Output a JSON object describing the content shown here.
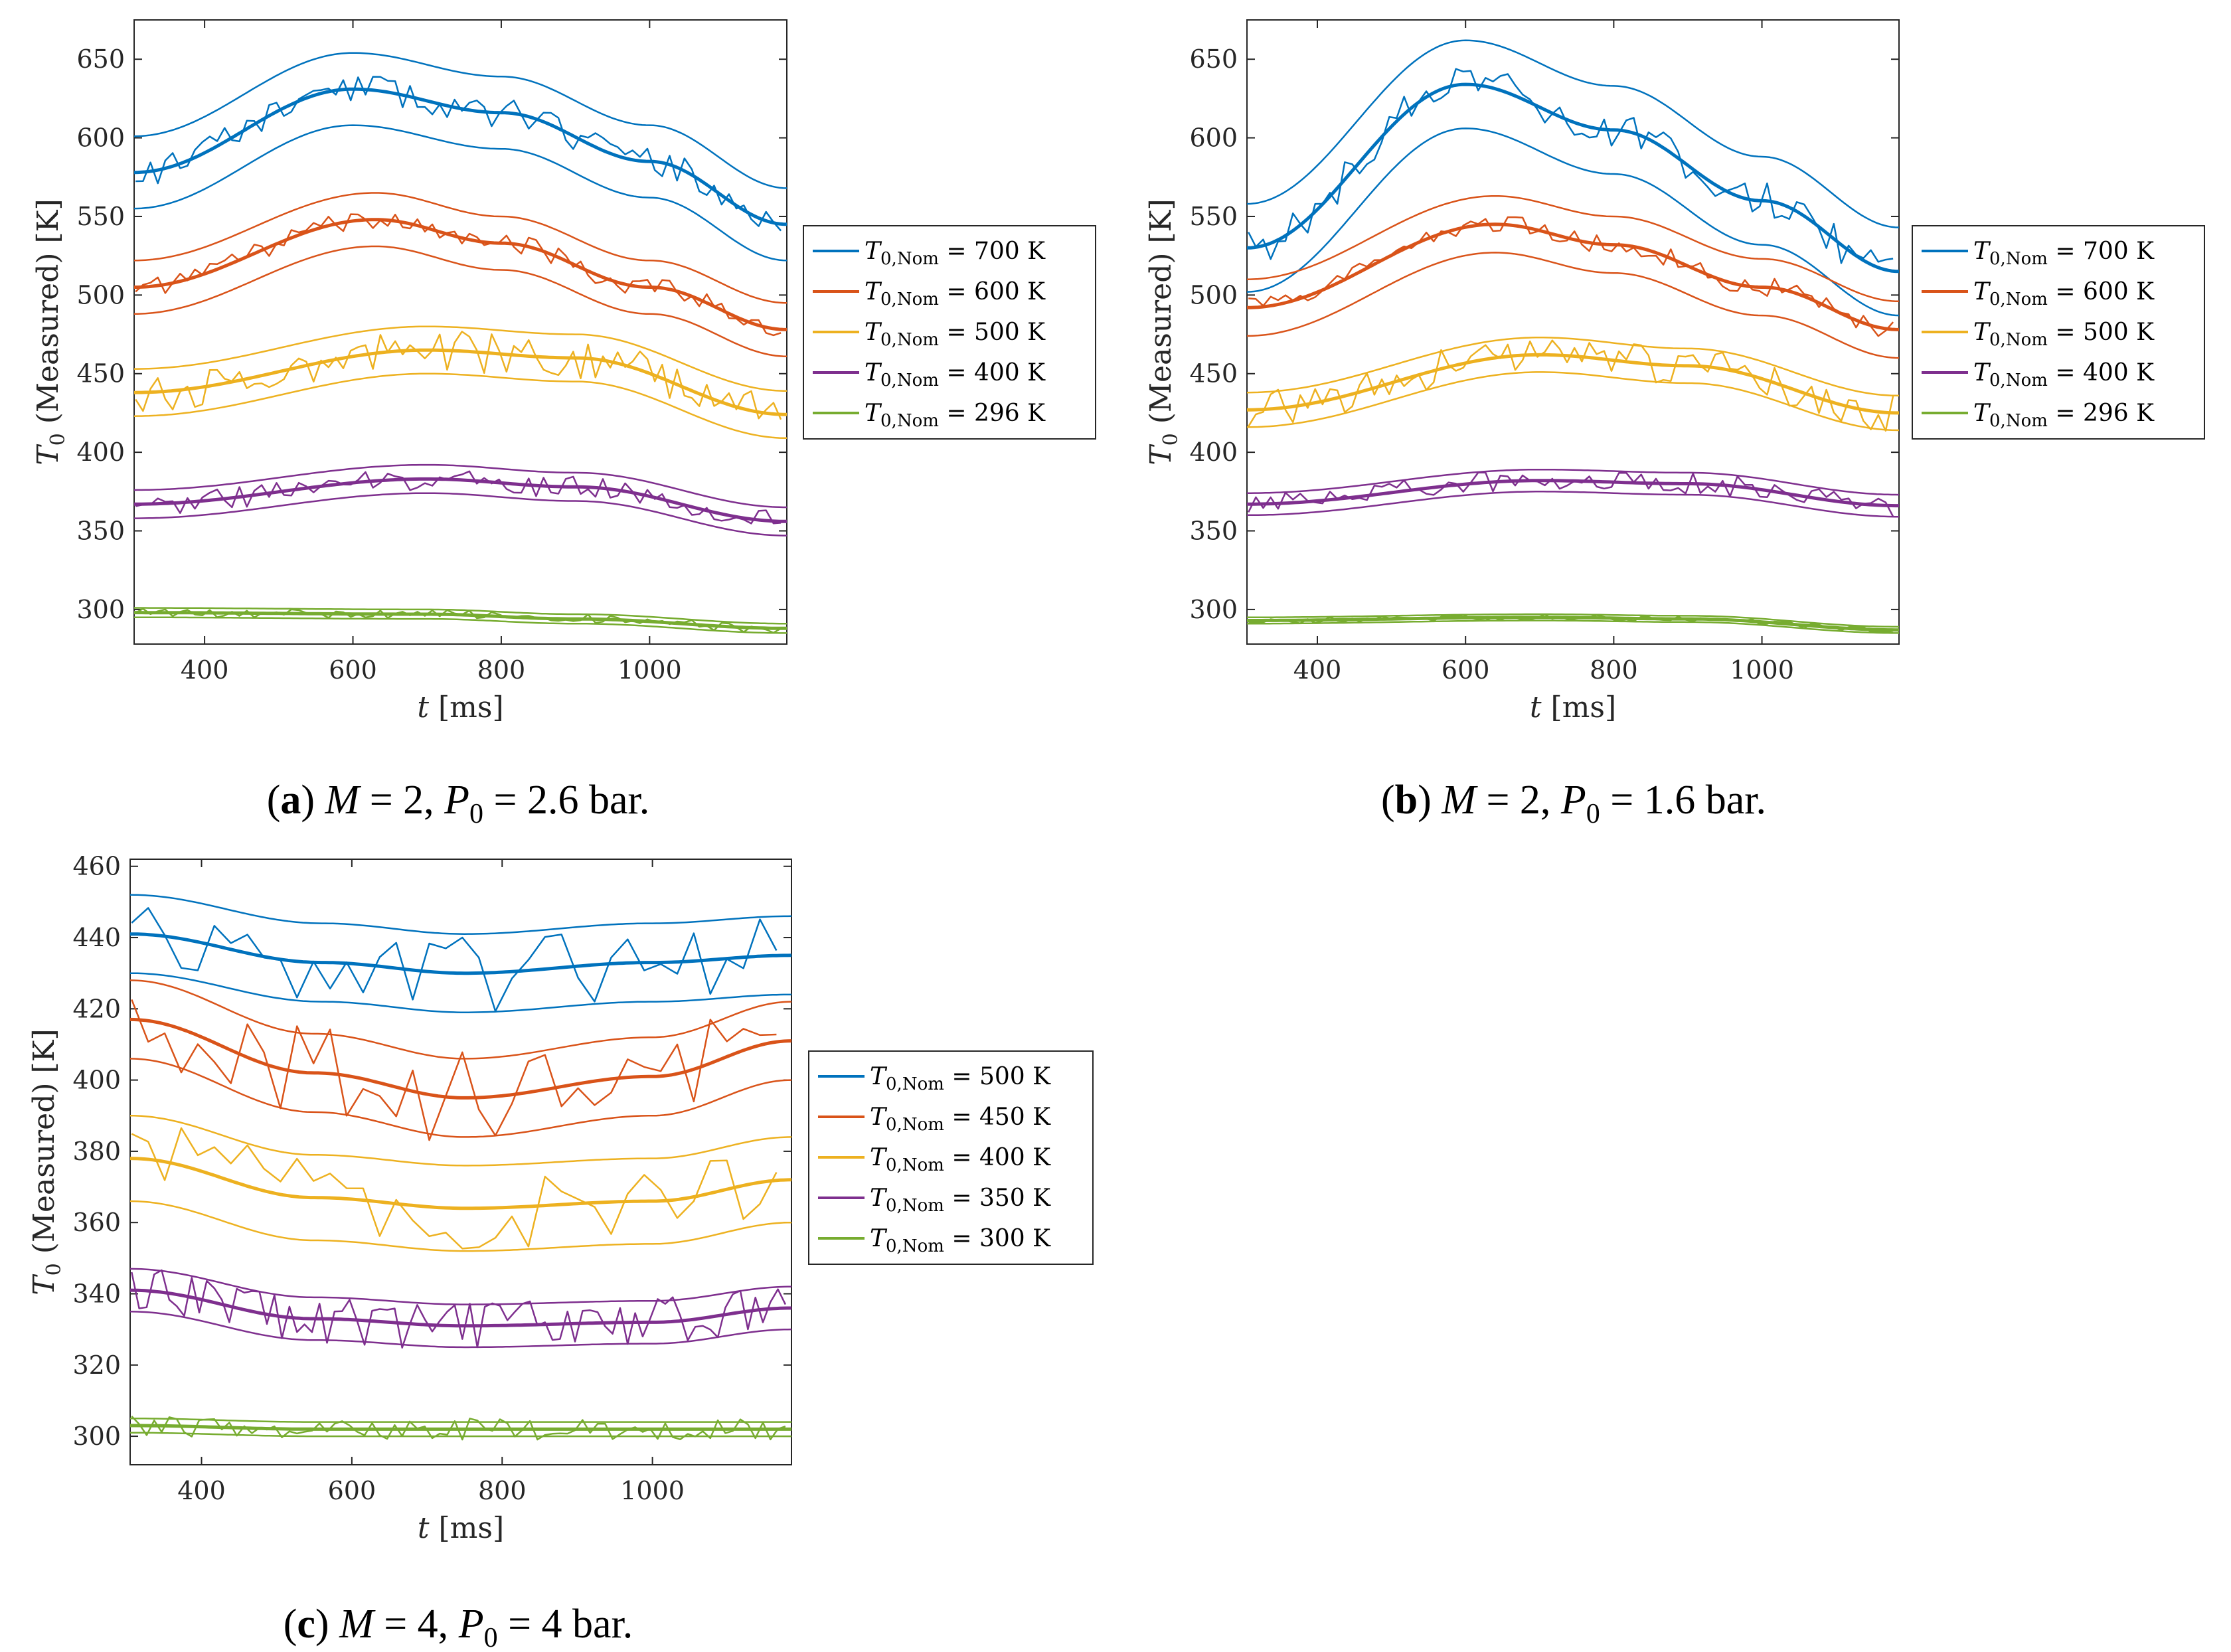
{
  "chart_data": [
    {
      "type": "line",
      "panel": "a",
      "caption": {
        "letter": "(a)",
        "m": "M",
        "m_value": "= 2,",
        "p": "P",
        "p_sub": "0",
        "p_value": "= 2.6 bar."
      },
      "xlabel": "t [ms]",
      "ylabel": "T0 (Measured) [K]",
      "xlim": [
        305,
        1185
      ],
      "ylim": [
        278,
        675
      ],
      "xticks": [
        400,
        600,
        800,
        1000
      ],
      "yticks": [
        300,
        350,
        400,
        450,
        500,
        550,
        600,
        650
      ],
      "legend_position": "outside-right",
      "series": [
        {
          "name": "T0,Nom = 700 K",
          "legend_text": "= 700 K",
          "color": "#0072BD",
          "fit": [
            [
              305,
              578
            ],
            [
              600,
              631
            ],
            [
              800,
              616
            ],
            [
              1000,
              585
            ],
            [
              1185,
              545
            ]
          ],
          "band": 23,
          "noise": 9,
          "seed": 11
        },
        {
          "name": "T0,Nom = 600 K",
          "legend_text": "= 600 K",
          "color": "#D95319",
          "fit": [
            [
              305,
              505
            ],
            [
              630,
              548
            ],
            [
              800,
              533
            ],
            [
              1000,
              505
            ],
            [
              1185,
              478
            ]
          ],
          "band": 17,
          "noise": 6,
          "seed": 12
        },
        {
          "name": "T0,Nom = 500 K",
          "legend_text": "= 500 K",
          "color": "#EDB120",
          "fit": [
            [
              305,
              438
            ],
            [
              700,
              465
            ],
            [
              900,
              460
            ],
            [
              1185,
              424
            ]
          ],
          "band": 15,
          "noise": 13,
          "seed": 13
        },
        {
          "name": "T0,Nom = 400 K",
          "legend_text": "= 400 K",
          "color": "#7E2F8E",
          "fit": [
            [
              305,
              367
            ],
            [
              700,
              383
            ],
            [
              900,
              378
            ],
            [
              1185,
              356
            ]
          ],
          "band": 9,
          "noise": 7,
          "seed": 14
        },
        {
          "name": "T0,Nom = 296 K",
          "legend_text": "= 296 K",
          "color": "#77AC30",
          "fit": [
            [
              305,
              298
            ],
            [
              700,
              297
            ],
            [
              900,
              294
            ],
            [
              1185,
              288
            ]
          ],
          "band": 3,
          "noise": 3,
          "seed": 15
        }
      ]
    },
    {
      "type": "line",
      "panel": "b",
      "caption": {
        "letter": "(b)",
        "m": "M",
        "m_value": "= 2,",
        "p": "P",
        "p_sub": "0",
        "p_value": "= 1.6 bar."
      },
      "xlabel": "t [ms]",
      "ylabel": "T0 (Measured) [K]",
      "xlim": [
        305,
        1185
      ],
      "ylim": [
        278,
        675
      ],
      "xticks": [
        400,
        600,
        800,
        1000
      ],
      "yticks": [
        300,
        350,
        400,
        450,
        500,
        550,
        600,
        650
      ],
      "legend_position": "outside-right",
      "series": [
        {
          "name": "T0,Nom = 700 K",
          "legend_text": "= 700 K",
          "color": "#0072BD",
          "fit": [
            [
              305,
              530
            ],
            [
              600,
              634
            ],
            [
              800,
              605
            ],
            [
              1000,
              560
            ],
            [
              1185,
              515
            ]
          ],
          "band": 28,
          "noise": 12,
          "seed": 21
        },
        {
          "name": "T0,Nom = 600 K",
          "legend_text": "= 600 K",
          "color": "#D95319",
          "fit": [
            [
              305,
              492
            ],
            [
              640,
              545
            ],
            [
              800,
              532
            ],
            [
              1000,
              505
            ],
            [
              1185,
              478
            ]
          ],
          "band": 18,
          "noise": 6,
          "seed": 22
        },
        {
          "name": "T0,Nom = 500 K",
          "legend_text": "= 500 K",
          "color": "#EDB120",
          "fit": [
            [
              305,
              427
            ],
            [
              700,
              462
            ],
            [
              900,
              455
            ],
            [
              1185,
              425
            ]
          ],
          "band": 11,
          "noise": 12,
          "seed": 23
        },
        {
          "name": "T0,Nom = 400 K",
          "legend_text": "= 400 K",
          "color": "#7E2F8E",
          "fit": [
            [
              305,
              367
            ],
            [
              700,
              382
            ],
            [
              900,
              380
            ],
            [
              1185,
              366
            ]
          ],
          "band": 7,
          "noise": 7,
          "seed": 24
        },
        {
          "name": "T0,Nom = 296 K",
          "legend_text": "= 296 K",
          "color": "#77AC30",
          "fit": [
            [
              305,
              293
            ],
            [
              700,
              295
            ],
            [
              900,
              294
            ],
            [
              1185,
              287
            ]
          ],
          "band": 2,
          "noise": 2,
          "seed": 25
        }
      ]
    },
    {
      "type": "line",
      "panel": "c",
      "caption": {
        "letter": "(c)",
        "m": "M",
        "m_value": "= 4,",
        "p": "P",
        "p_sub": "0",
        "p_value": "= 4 bar."
      },
      "xlabel": "t [ms]",
      "ylabel": "T0 (Measured) [K]",
      "xlim": [
        305,
        1185
      ],
      "ylim": [
        292,
        462
      ],
      "xticks": [
        400,
        600,
        800,
        1000
      ],
      "yticks": [
        300,
        320,
        340,
        360,
        380,
        400,
        420,
        440,
        460
      ],
      "legend_position": "outside-right",
      "series": [
        {
          "name": "T0,Nom = 500 K",
          "legend_text": "= 500 K",
          "color": "#0072BD",
          "fit": [
            [
              305,
              441
            ],
            [
              560,
              433
            ],
            [
              750,
              430
            ],
            [
              1000,
              433
            ],
            [
              1185,
              435
            ]
          ],
          "band": 11,
          "noise": 11,
          "seed": 31,
          "sparse": true
        },
        {
          "name": "T0,Nom = 450 K",
          "legend_text": "= 450 K",
          "color": "#D95319",
          "fit": [
            [
              305,
              417
            ],
            [
              550,
              402
            ],
            [
              750,
              395
            ],
            [
              1000,
              401
            ],
            [
              1185,
              411
            ]
          ],
          "band": 11,
          "noise": 13,
          "seed": 32,
          "sparse": true
        },
        {
          "name": "T0,Nom = 400 K",
          "legend_text": "= 400 K",
          "color": "#EDB120",
          "fit": [
            [
              305,
              378
            ],
            [
              550,
              367
            ],
            [
              750,
              364
            ],
            [
              1000,
              366
            ],
            [
              1185,
              372
            ]
          ],
          "band": 12,
          "noise": 12,
          "seed": 33,
          "sparse": true
        },
        {
          "name": "T0,Nom = 350 K",
          "legend_text": "= 350 K",
          "color": "#7E2F8E",
          "fit": [
            [
              305,
              341
            ],
            [
              550,
              333
            ],
            [
              750,
              331
            ],
            [
              1000,
              332
            ],
            [
              1185,
              336
            ]
          ],
          "band": 6,
          "noise": 7,
          "seed": 34
        },
        {
          "name": "T0,Nom = 300 K",
          "legend_text": "= 300 K",
          "color": "#77AC30",
          "fit": [
            [
              305,
              303
            ],
            [
              550,
              302
            ],
            [
              750,
              302
            ],
            [
              1000,
              302
            ],
            [
              1185,
              302
            ]
          ],
          "band": 2,
          "noise": 3,
          "seed": 35
        }
      ]
    }
  ]
}
